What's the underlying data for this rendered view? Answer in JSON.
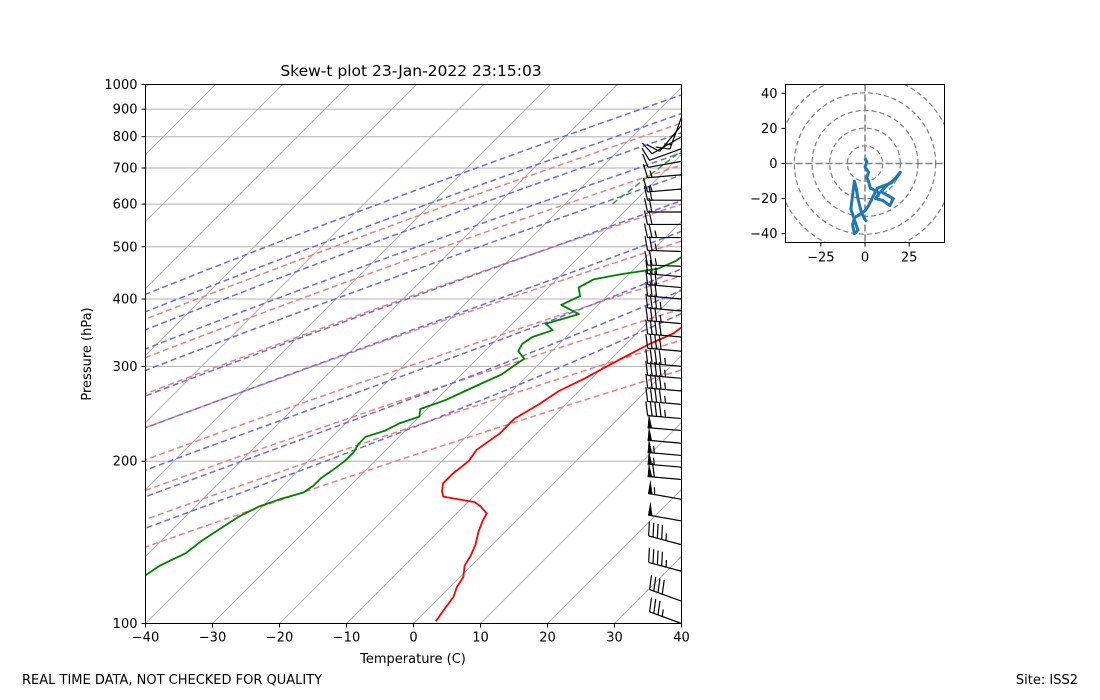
{
  "footer": {
    "left": "REAL TIME DATA, NOT CHECKED FOR QUALITY",
    "right": "Site: ISS2"
  },
  "chart_data": [
    {
      "type": "skew-t",
      "title": "Skew-t plot 23-Jan-2022 23:15:03",
      "xlabel": "Temperature (C)",
      "ylabel": "Pressure (hPa)",
      "xlim": [
        -40,
        40
      ],
      "ylim": [
        1000,
        100
      ],
      "y_scale": "log",
      "x_ticks": [
        "−40",
        "−30",
        "−20",
        "−10",
        "0",
        "10",
        "20",
        "30",
        "40"
      ],
      "x_tick_values": [
        -40,
        -30,
        -20,
        -10,
        0,
        10,
        20,
        30,
        40
      ],
      "y_ticks": [
        "100",
        "200",
        "300",
        "400",
        "500",
        "600",
        "700",
        "800",
        "900",
        "1000"
      ],
      "y_tick_values": [
        100,
        200,
        300,
        400,
        500,
        600,
        700,
        800,
        900,
        1000
      ],
      "grid": true,
      "colors": {
        "temperature": "#ff0000",
        "dewpoint": "#008000",
        "dry_adiabats": "#f08080",
        "moist_adiabats": "#6a6aee",
        "mixing_ratio": "#2ca02c",
        "isotherms": "#b0b0b0",
        "barbs": "#000000"
      },
      "dry_adiabat_thetas_K": [
        250,
        270,
        290,
        310,
        330,
        350,
        370,
        390
      ],
      "moist_adiabat_start_C": [
        -36,
        -28,
        -20,
        -12,
        -4,
        4,
        12,
        20,
        24,
        28
      ],
      "mixing_ratio_g_kg": [
        0.4,
        1,
        2,
        3,
        5,
        8,
        12,
        16,
        20,
        24
      ],
      "series": [
        {
          "key": "temperature",
          "p": [
            840,
            835,
            820,
            805,
            790,
            780,
            770,
            755,
            740,
            720,
            700,
            680,
            660,
            640,
            620,
            600,
            580,
            560,
            540,
            520,
            500,
            480,
            460,
            440,
            420,
            400,
            380,
            360,
            345,
            330,
            315,
            300,
            285,
            270,
            255,
            240,
            225,
            210,
            200,
            190,
            182,
            176,
            172,
            168,
            165,
            160,
            155,
            148,
            140,
            133,
            128,
            122,
            117,
            112,
            106,
            101
          ],
          "t": [
            9.0,
            7.0,
            6.0,
            5.5,
            6.0,
            5.5,
            6.0,
            10.0,
            9.5,
            10.0,
            10.5,
            10.0,
            10.5,
            10.5,
            10.0,
            9.5,
            8.5,
            8.0,
            7.5,
            7.0,
            6.5,
            7.0,
            6.0,
            5.0,
            2.5,
            0.0,
            -2.0,
            -4.0,
            -4.5,
            -6.5,
            -8.0,
            -9.5,
            -11.0,
            -13.0,
            -14.0,
            -15.5,
            -15.5,
            -16.5,
            -16.0,
            -16.5,
            -16.5,
            -15.5,
            -14.5,
            -9.0,
            -7.5,
            -5.5,
            -5.0,
            -4.0,
            -2.5,
            -1.5,
            -1.0,
            0.5,
            1.0,
            2.0,
            2.5,
            3.0
          ]
        },
        {
          "key": "dewpoint",
          "p": [
            850,
            830,
            815,
            800,
            785,
            770,
            755,
            740,
            725,
            710,
            695,
            680,
            665,
            650,
            635,
            620,
            605,
            590,
            575,
            560,
            545,
            530,
            515,
            500,
            485,
            470,
            455,
            445,
            435,
            420,
            405,
            390,
            375,
            360,
            350,
            340,
            330,
            320,
            310,
            300,
            290,
            280,
            270,
            260,
            250,
            242,
            235,
            228,
            222,
            215,
            208,
            200,
            192,
            186,
            180,
            175,
            170,
            165,
            158,
            150,
            142,
            135,
            128,
            121,
            114,
            108,
            102,
            100
          ],
          "t": [
            -1.0,
            -3.0,
            -1.0,
            -4.0,
            -5.0,
            -6.5,
            -6.0,
            -8.0,
            -7.0,
            -8.5,
            -9.0,
            -8.5,
            -9.0,
            -9.0,
            -10.5,
            -9.5,
            -10.5,
            -10.5,
            -11.0,
            -11.5,
            -11.5,
            -12.0,
            -13.5,
            -14.0,
            -14.5,
            -15.0,
            -16.5,
            -21.0,
            -24.5,
            -25.5,
            -24.0,
            -25.5,
            -21.5,
            -25.0,
            -23.0,
            -25.0,
            -25.5,
            -25.0,
            -23.0,
            -23.5,
            -24.0,
            -25.5,
            -27.0,
            -28.5,
            -31.0,
            -30.0,
            -32.0,
            -33.0,
            -35.0,
            -35.0,
            -34.5,
            -34.5,
            -35.0,
            -35.5,
            -35.5,
            -36.0,
            -38.5,
            -40.5,
            -42.0,
            -43.0,
            -44.0,
            -44.5,
            -46.5,
            -47.5,
            -49.5,
            -50.5,
            -51.0,
            -51.0
          ]
        }
      ],
      "wind": {
        "p": [
          870,
          840,
          800,
          760,
          720,
          680,
          640,
          610,
          580,
          550,
          520,
          490,
          460,
          440,
          420,
          400,
          380,
          360,
          340,
          320,
          300,
          285,
          270,
          255,
          240,
          228,
          216,
          205,
          195,
          185,
          170,
          155,
          140,
          125,
          110,
          100
        ],
        "speed_kt": [
          15,
          10,
          10,
          10,
          10,
          15,
          15,
          20,
          20,
          20,
          25,
          25,
          25,
          25,
          30,
          30,
          35,
          35,
          40,
          40,
          45,
          45,
          45,
          45,
          45,
          50,
          50,
          55,
          55,
          60,
          55,
          50,
          45,
          45,
          40,
          35
        ],
        "direction_deg": [
          200,
          220,
          240,
          250,
          260,
          265,
          265,
          270,
          270,
          270,
          270,
          272,
          272,
          275,
          275,
          275,
          275,
          275,
          275,
          275,
          275,
          275,
          275,
          275,
          275,
          275,
          275,
          275,
          275,
          275,
          280,
          280,
          285,
          285,
          290,
          290
        ]
      }
    },
    {
      "type": "hodograph",
      "xlim": [
        -45,
        45
      ],
      "ylim": [
        -45,
        45
      ],
      "x_ticks": [
        "−25",
        "0",
        "25"
      ],
      "x_tick_values": [
        -25,
        0,
        25
      ],
      "y_ticks": [
        "−40",
        "−20",
        "0",
        "20",
        "40"
      ],
      "y_tick_values": [
        -40,
        -20,
        0,
        20,
        40
      ],
      "rings": [
        10,
        20,
        30,
        40,
        50
      ],
      "color": "#1f77b4",
      "u": [
        0,
        1,
        0,
        2,
        1,
        2,
        3,
        5,
        8,
        6,
        10,
        14,
        16,
        9,
        13,
        18,
        20,
        15,
        7,
        5,
        3,
        2,
        0,
        -6,
        -7,
        -6,
        -4,
        -8,
        -7,
        -6,
        -5,
        -4,
        -2,
        0,
        1
      ],
      "v": [
        3,
        1,
        -2,
        -5,
        -8,
        -10,
        -14,
        -15,
        -17,
        -20,
        -21,
        -24,
        -20,
        -16,
        -12,
        -8,
        -5,
        -11,
        -14,
        -18,
        -22,
        -24,
        -27,
        -31,
        -35,
        -40,
        -38,
        -26,
        -18,
        -10,
        -14,
        -20,
        -28,
        -32,
        -33
      ]
    }
  ]
}
